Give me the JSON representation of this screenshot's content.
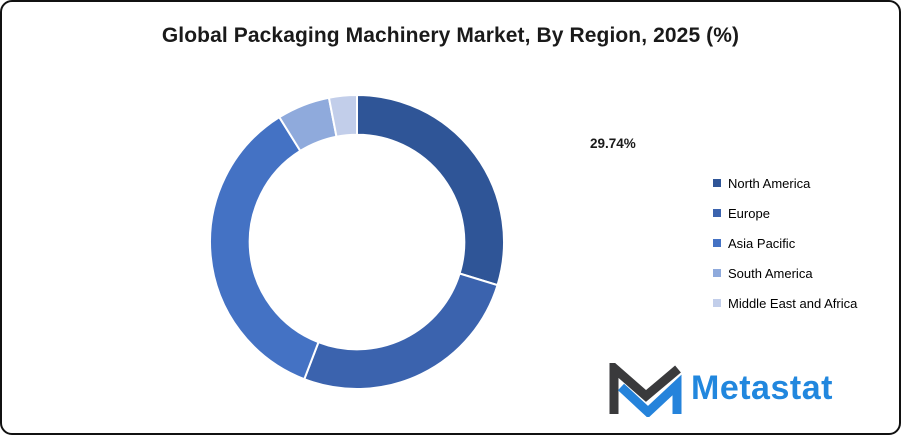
{
  "title": "Global Packaging Machinery Market, By Region, 2025 (%)",
  "chart_data": {
    "type": "pie",
    "subtype": "donut",
    "title": "Global Packaging Machinery Market, By Region, 2025 (%)",
    "unit": "%",
    "categories": [
      "North America",
      "Europe",
      "Asia Pacific",
      "South America",
      "Middle East and Africa"
    ],
    "values": [
      29.74,
      26.1,
      35.3,
      5.8,
      3.06
    ],
    "colors": [
      "#2F5597",
      "#3B63AE",
      "#4472C4",
      "#8FAADC",
      "#C2CEEA"
    ],
    "start_angle_deg": 0,
    "direction": "clockwise",
    "inner_radius_ratio": 0.73,
    "segment_gap_color": "#FFFFFF",
    "data_labels": [
      {
        "text": "29.74%",
        "category": "North America"
      }
    ],
    "legend_position": "right"
  },
  "logo": {
    "text": "Metastat",
    "text_color": "#2187DE",
    "mark_dark_color": "#3A3A3C",
    "mark_blue_color": "#2583DB"
  }
}
